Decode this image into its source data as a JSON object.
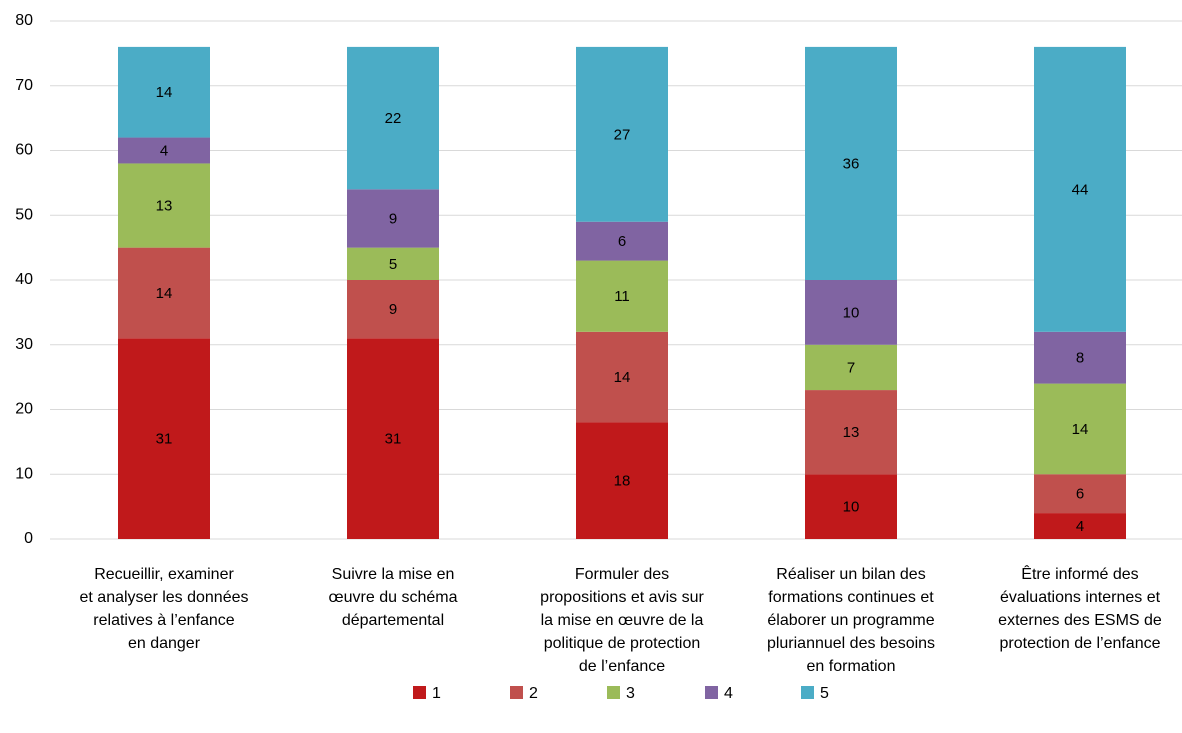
{
  "chart_data": {
    "type": "stacked_bar",
    "categories": [
      [
        "Recueillir, examiner",
        "et analyser les données",
        "relatives à l’enfance",
        "en danger"
      ],
      [
        "Suivre la mise en",
        "œuvre du schéma",
        "départemental"
      ],
      [
        "Formuler des",
        "propositions et avis sur",
        "la mise en œuvre de la",
        "politique de protection",
        "de l’enfance"
      ],
      [
        "Réaliser un bilan des",
        "formations continues et",
        "élaborer un programme",
        "pluriannuel des besoins",
        "en formation"
      ],
      [
        "Être informé des",
        "évaluations internes et",
        "externes des ESMS de",
        "protection de l’enfance"
      ]
    ],
    "series": [
      {
        "name": "1",
        "color": "#c0191b",
        "values": [
          31,
          31,
          18,
          10,
          4
        ]
      },
      {
        "name": "2",
        "color": "#c0504d",
        "values": [
          14,
          9,
          14,
          13,
          6
        ]
      },
      {
        "name": "3",
        "color": "#9bbb59",
        "values": [
          13,
          5,
          11,
          7,
          14
        ]
      },
      {
        "name": "4",
        "color": "#8064a2",
        "values": [
          4,
          9,
          6,
          10,
          8
        ]
      },
      {
        "name": "5",
        "color": "#4bacc6",
        "values": [
          14,
          22,
          27,
          36,
          44
        ]
      }
    ],
    "ylim": [
      0,
      80
    ],
    "yticks": [
      0,
      10,
      20,
      30,
      40,
      50,
      60,
      70,
      80
    ],
    "grid": true,
    "legend": "bottom"
  }
}
